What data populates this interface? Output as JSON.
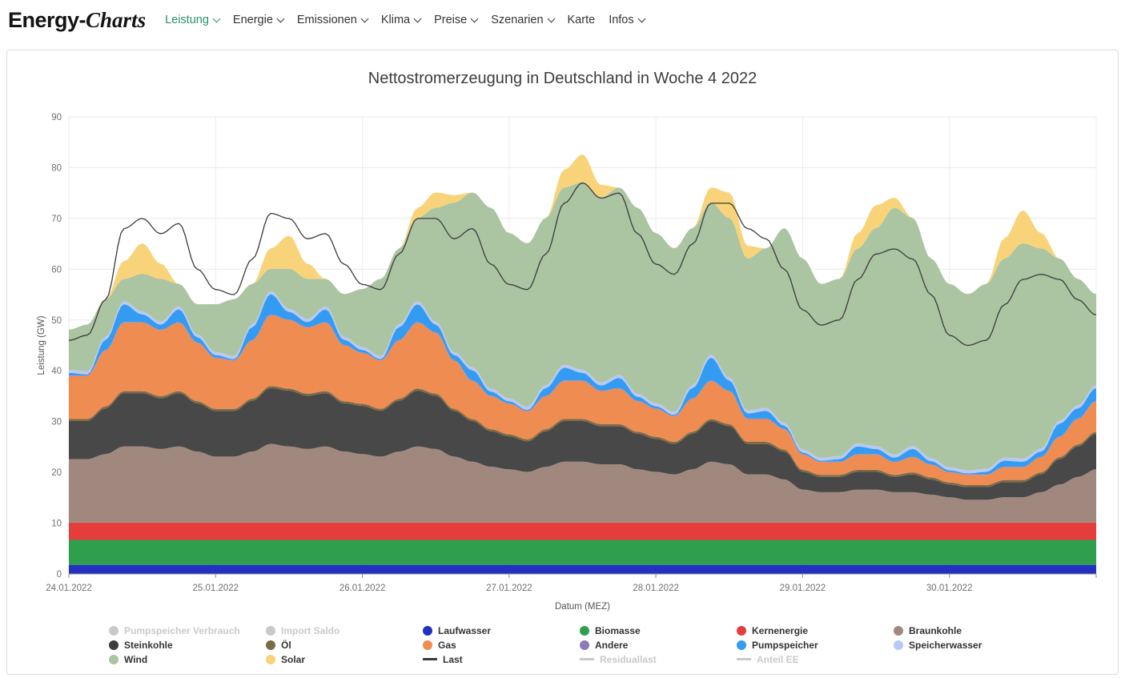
{
  "header": {
    "logo_primary": "Energy-",
    "logo_secondary": "Charts",
    "accent_color": "#2a9461",
    "nav": [
      {
        "id": "leistung",
        "label": "Leistung",
        "active": true,
        "chevron": true
      },
      {
        "id": "energie",
        "label": "Energie",
        "active": false,
        "chevron": true
      },
      {
        "id": "emissionen",
        "label": "Emissionen",
        "active": false,
        "chevron": true
      },
      {
        "id": "klima",
        "label": "Klima",
        "active": false,
        "chevron": true
      },
      {
        "id": "preise",
        "label": "Preise",
        "active": false,
        "chevron": true
      },
      {
        "id": "szenarien",
        "label": "Szenarien",
        "active": false,
        "chevron": true
      },
      {
        "id": "karte",
        "label": "Karte",
        "active": false,
        "chevron": false
      },
      {
        "id": "infos",
        "label": "Infos",
        "active": false,
        "chevron": true
      }
    ]
  },
  "chart_data": {
    "type": "area",
    "stacked": true,
    "title": "Nettostromerzeugung in Deutschland in Woche 4 2022",
    "xlabel": "Datum (MEZ)",
    "ylabel": "Leistung (GW)",
    "ylim": [
      0,
      90
    ],
    "ytick_step": 10,
    "x_unit": "hours",
    "x_start_hours": 0,
    "x_step_hours": 3,
    "x_end_hours": 168,
    "x_day_labels": [
      "24.01.2022",
      "25.01.2022",
      "26.01.2022",
      "27.01.2022",
      "28.01.2022",
      "29.01.2022",
      "30.01.2022"
    ],
    "grid": true,
    "legend_position": "bottom",
    "series": [
      {
        "id": "laufwasser",
        "name": "Laufwasser",
        "color": "#2430c0",
        "constant": 1.8
      },
      {
        "id": "biomasse",
        "name": "Biomasse",
        "color": "#2ea04d",
        "constant": 4.9
      },
      {
        "id": "kernenergie",
        "name": "Kernenergie",
        "color": "#e53c3c",
        "constant": 3.4
      },
      {
        "id": "braunkohle",
        "name": "Braunkohle",
        "color": "#a1887f",
        "values": [
          12.5,
          12.5,
          13.5,
          15.0,
          15.0,
          14.5,
          15.0,
          14.0,
          13.0,
          13.0,
          14.0,
          15.5,
          15.0,
          14.5,
          15.0,
          14.0,
          13.5,
          13.0,
          14.0,
          15.0,
          14.5,
          13.0,
          12.0,
          11.0,
          10.5,
          10.0,
          11.0,
          12.0,
          12.0,
          11.5,
          11.5,
          10.5,
          10.0,
          9.5,
          10.5,
          12.0,
          11.5,
          9.5,
          9.5,
          8.5,
          6.5,
          6.0,
          6.0,
          6.5,
          6.5,
          6.0,
          6.0,
          5.5,
          5.0,
          4.5,
          4.5,
          5.0,
          5.0,
          6.0,
          7.5,
          9.0,
          10.5
        ]
      },
      {
        "id": "steinkohle",
        "name": "Steinkohle",
        "color": "#484848",
        "values": [
          7.5,
          7.5,
          9.0,
          10.5,
          10.5,
          10.0,
          10.5,
          9.5,
          9.0,
          9.0,
          10.0,
          11.0,
          11.0,
          10.5,
          10.5,
          9.5,
          9.5,
          9.0,
          10.0,
          11.0,
          10.5,
          9.0,
          8.0,
          7.0,
          6.5,
          6.0,
          7.0,
          8.0,
          8.0,
          7.5,
          7.5,
          7.0,
          6.5,
          6.0,
          7.0,
          8.0,
          7.5,
          6.0,
          6.0,
          5.5,
          3.5,
          3.0,
          3.0,
          3.5,
          3.5,
          3.0,
          3.5,
          3.0,
          2.5,
          2.5,
          2.5,
          3.0,
          3.0,
          3.5,
          5.0,
          6.0,
          7.0
        ]
      },
      {
        "id": "oel",
        "name": "Öl",
        "color": "#7d6b46",
        "constant": 0.4
      },
      {
        "id": "gas",
        "name": "Gas",
        "color": "#ef8c52",
        "values": [
          8.5,
          8.5,
          11.0,
          13.5,
          13.5,
          13.0,
          13.5,
          11.5,
          10.0,
          9.5,
          11.5,
          14.0,
          13.5,
          13.0,
          13.5,
          11.0,
          10.0,
          9.5,
          11.5,
          13.0,
          12.0,
          9.5,
          7.5,
          6.5,
          6.0,
          5.5,
          6.5,
          7.5,
          7.5,
          6.5,
          7.0,
          6.0,
          5.5,
          5.0,
          6.5,
          7.5,
          6.5,
          4.5,
          4.5,
          4.0,
          3.0,
          2.5,
          2.5,
          3.0,
          3.0,
          2.5,
          3.0,
          2.5,
          2.0,
          2.0,
          2.0,
          2.5,
          2.5,
          3.0,
          4.0,
          5.0,
          6.0
        ]
      },
      {
        "id": "andere",
        "name": "Andere",
        "color": "#8d7bb8",
        "constant": 0.1
      },
      {
        "id": "pumpspeicher",
        "name": "Pumpspeicher",
        "color": "#339cf2",
        "values": [
          0.5,
          0.2,
          2.0,
          3.5,
          1.5,
          1.0,
          2.5,
          1.0,
          0.5,
          0.2,
          2.5,
          4.0,
          1.5,
          1.0,
          2.5,
          1.0,
          0.5,
          0.2,
          2.5,
          3.5,
          1.5,
          1.0,
          2.0,
          0.8,
          0.4,
          0.2,
          1.5,
          2.5,
          1.5,
          1.0,
          2.0,
          0.8,
          0.4,
          0.2,
          2.0,
          4.5,
          2.0,
          1.0,
          1.5,
          0.6,
          0.3,
          0.2,
          0.5,
          1.5,
          1.0,
          0.8,
          1.5,
          0.6,
          0.3,
          0.2,
          0.5,
          1.2,
          1.0,
          1.0,
          2.5,
          2.0,
          2.5
        ]
      },
      {
        "id": "speicherwasser",
        "name": "Speicherwasser",
        "color": "#b9c8f5",
        "constant": 0.6
      },
      {
        "id": "wind",
        "name": "Wind",
        "color": "#abc4a2",
        "values": [
          7.9,
          9.2,
          7.4,
          4.4,
          7.4,
          8.4,
          4.4,
          5.9,
          9.4,
          11.2,
          7.9,
          4.4,
          7.9,
          7.9,
          5.4,
          8.4,
          11.4,
          15.2,
          14.9,
          16.4,
          22.4,
          29.4,
          34.4,
          35.6,
          32.5,
          32.2,
          32.9,
          34.9,
          36.9,
          36.4,
          36.9,
          36.6,
          33.5,
          32.2,
          30.9,
          29.9,
          31.4,
          29.9,
          31.4,
          38.3,
          37.6,
          34.2,
          34.9,
          38.4,
          42.9,
          48.6,
          44.9,
          39.3,
          36.1,
          34.7,
          36.4,
          39.2,
          42.4,
          39.4,
          31.9,
          24.9,
          17.9
        ]
      },
      {
        "id": "solar",
        "name": "Solar",
        "color": "#f8d379",
        "values": [
          0,
          0,
          0,
          3.5,
          6.0,
          3.0,
          0,
          0,
          0,
          0,
          0,
          4.0,
          6.5,
          3.0,
          0,
          0,
          0,
          0,
          0,
          2.0,
          3.0,
          1.5,
          0,
          0,
          0,
          0,
          0,
          3.5,
          5.5,
          2.5,
          0,
          0,
          0,
          0,
          0,
          3.0,
          5.0,
          2.5,
          0,
          0,
          0,
          0,
          0,
          3.0,
          4.5,
          2.0,
          0,
          0,
          0,
          0,
          0,
          4.0,
          6.5,
          3.0,
          0,
          0,
          0
        ]
      }
    ],
    "line_series": {
      "id": "last",
      "name": "Last",
      "color": "#3c3c3c",
      "values": [
        46,
        47,
        54,
        68,
        70,
        67,
        69,
        60,
        56,
        55,
        62,
        71,
        70,
        66,
        67,
        61,
        57,
        56,
        63,
        70,
        70,
        66,
        68,
        61,
        57,
        56,
        63,
        73,
        77,
        74,
        75,
        67,
        61,
        59,
        65,
        73,
        73,
        68,
        66,
        60,
        52,
        49,
        50,
        58,
        63,
        64,
        62,
        55,
        47,
        45,
        46,
        53,
        58,
        59,
        58,
        54,
        51
      ]
    },
    "legend": {
      "items": [
        {
          "id": "pumpspeicher-verbrauch",
          "label": "Pumpspeicher Verbrauch",
          "color": "#c9c9c9",
          "symbol": "circle",
          "enabled": false
        },
        {
          "id": "import-saldo",
          "label": "Import Saldo",
          "color": "#c9c9c9",
          "symbol": "circle",
          "enabled": false
        },
        {
          "id": "laufwasser",
          "label": "Laufwasser",
          "color": "#2430c0",
          "symbol": "circle",
          "enabled": true
        },
        {
          "id": "biomasse",
          "label": "Biomasse",
          "color": "#2ea04d",
          "symbol": "circle",
          "enabled": true
        },
        {
          "id": "kernenergie",
          "label": "Kernenergie",
          "color": "#e53c3c",
          "symbol": "circle",
          "enabled": true
        },
        {
          "id": "braunkohle",
          "label": "Braunkohle",
          "color": "#a1887f",
          "symbol": "circle",
          "enabled": true
        },
        {
          "id": "steinkohle",
          "label": "Steinkohle",
          "color": "#3d3d3d",
          "symbol": "circle",
          "enabled": true
        },
        {
          "id": "oel",
          "label": "Öl",
          "color": "#7d6b46",
          "symbol": "circle",
          "enabled": true
        },
        {
          "id": "gas",
          "label": "Gas",
          "color": "#ef8c52",
          "symbol": "circle",
          "enabled": true
        },
        {
          "id": "andere",
          "label": "Andere",
          "color": "#8d7bb8",
          "symbol": "circle",
          "enabled": true
        },
        {
          "id": "pumpspeicher",
          "label": "Pumpspeicher",
          "color": "#339cf2",
          "symbol": "circle",
          "enabled": true
        },
        {
          "id": "speicherwasser",
          "label": "Speicherwasser",
          "color": "#b9c8f5",
          "symbol": "circle",
          "enabled": true
        },
        {
          "id": "wind",
          "label": "Wind",
          "color": "#abc4a2",
          "symbol": "circle",
          "enabled": true
        },
        {
          "id": "solar",
          "label": "Solar",
          "color": "#f8d379",
          "symbol": "circle",
          "enabled": true
        },
        {
          "id": "last",
          "label": "Last",
          "color": "#3c3c3c",
          "symbol": "line",
          "enabled": true
        },
        {
          "id": "residuallast",
          "label": "Residuallast",
          "color": "#c9c9c9",
          "symbol": "line",
          "enabled": false
        },
        {
          "id": "anteil-ee",
          "label": "Anteil EE",
          "color": "#c9c9c9",
          "symbol": "line",
          "enabled": false
        }
      ]
    }
  }
}
